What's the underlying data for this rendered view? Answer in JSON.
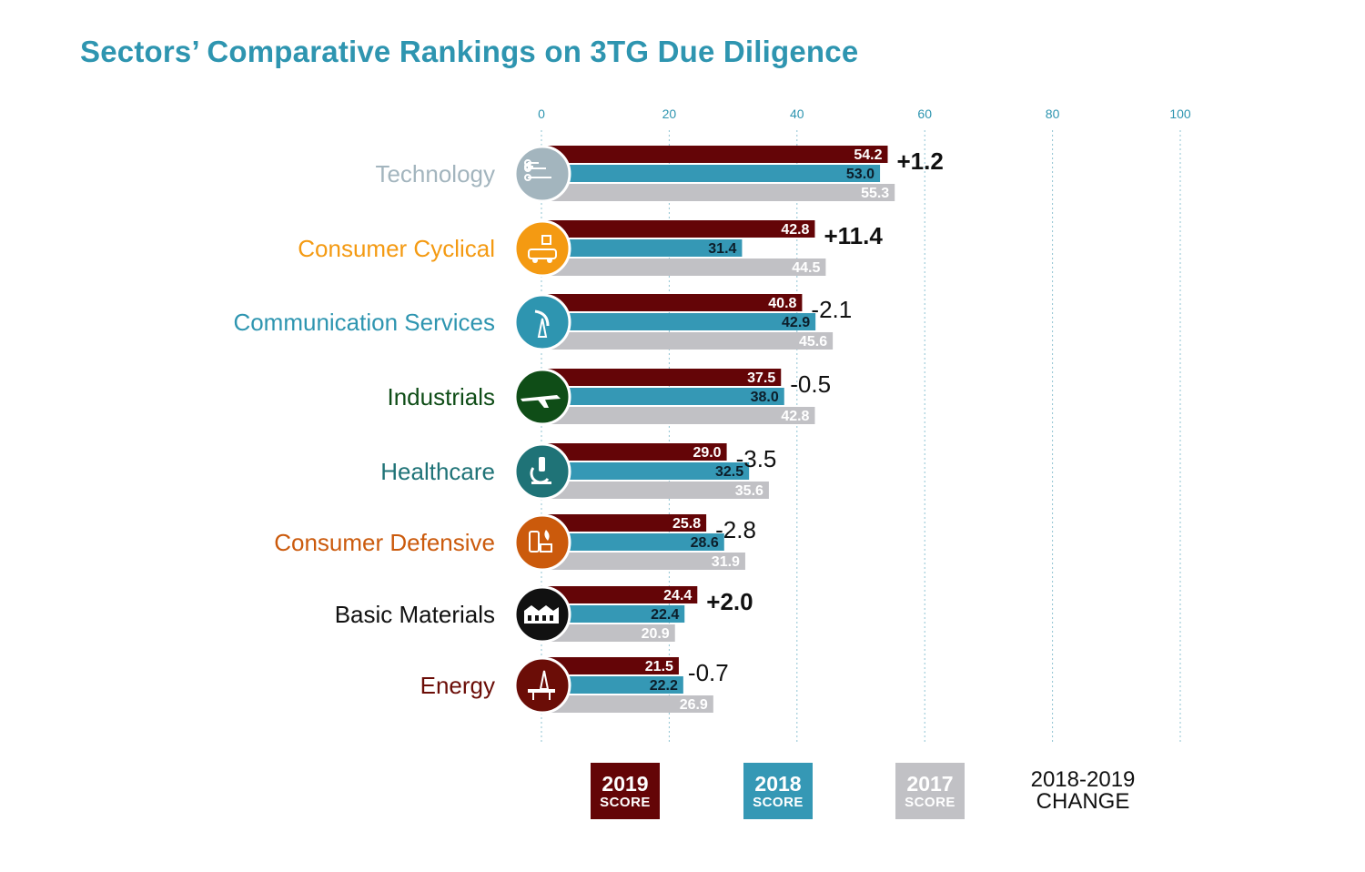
{
  "chart_data": {
    "type": "bar",
    "orientation": "horizontal",
    "title": "Sectors’ Comparative Rankings on 3TG Due Diligence",
    "xlim": [
      0,
      100
    ],
    "xticks": [
      0,
      20,
      40,
      60,
      80,
      100
    ],
    "grid": true,
    "legend_placement": "bottom",
    "categories": [
      "Technology",
      "Consumer Cyclical",
      "Communication Services",
      "Industrials",
      "Healthcare",
      "Consumer Defensive",
      "Basic Materials",
      "Energy"
    ],
    "category_colors": [
      "#a3b5be",
      "#f49a12",
      "#2e95b0",
      "#0f4d17",
      "#1f7377",
      "#cb5a0c",
      "#111111",
      "#6b0d07"
    ],
    "category_icons": [
      "circuit-icon",
      "shopping-car-icon",
      "satellite-dish-icon",
      "airplane-icon",
      "microscope-icon",
      "consumer-goods-icon",
      "factory-icon",
      "oil-rig-icon"
    ],
    "series": [
      {
        "name": "2019 SCORE",
        "values": [
          54.2,
          42.8,
          40.8,
          37.5,
          29.0,
          25.8,
          24.4,
          21.5
        ],
        "color": "#640507"
      },
      {
        "name": "2018 SCORE",
        "values": [
          53.0,
          31.4,
          42.9,
          38.0,
          32.5,
          28.6,
          22.4,
          22.2
        ],
        "color": "#3598b5"
      },
      {
        "name": "2017 SCORE",
        "values": [
          55.3,
          44.5,
          45.6,
          42.8,
          35.6,
          31.9,
          20.9,
          26.9
        ],
        "color": "#c1c1c5"
      }
    ],
    "value_labels": [
      [
        "54.2",
        "42.8",
        "40.8",
        "37.5",
        "29.0",
        "25.8",
        "24.4",
        "21.5"
      ],
      [
        "53.0",
        "31.4",
        "42.9",
        "38.0",
        "32.5",
        "28.6",
        "22.4",
        "22.2"
      ],
      [
        "55.3",
        "44.5",
        "45.6",
        "42.8",
        "35.6",
        "31.9",
        "20.9",
        "26.9"
      ]
    ],
    "change": {
      "name": "2018-2019 CHANGE",
      "labels": [
        "+1.2",
        "+11.4",
        "-2.1",
        "-0.5",
        "-3.5",
        "-2.8",
        "+2.0",
        "-0.7"
      ]
    }
  },
  "legend": [
    {
      "year": "2019",
      "sub": "SCORE",
      "color": "#640507",
      "text_color": "#ffffff"
    },
    {
      "year": "2018",
      "sub": "SCORE",
      "color": "#3598b5",
      "text_color": "#ffffff"
    },
    {
      "year": "2017",
      "sub": "SCORE",
      "color": "#c1c1c5",
      "text_color": "#ffffff"
    }
  ],
  "legend_change": {
    "line1": "2018-2019",
    "line2": "CHANGE"
  }
}
